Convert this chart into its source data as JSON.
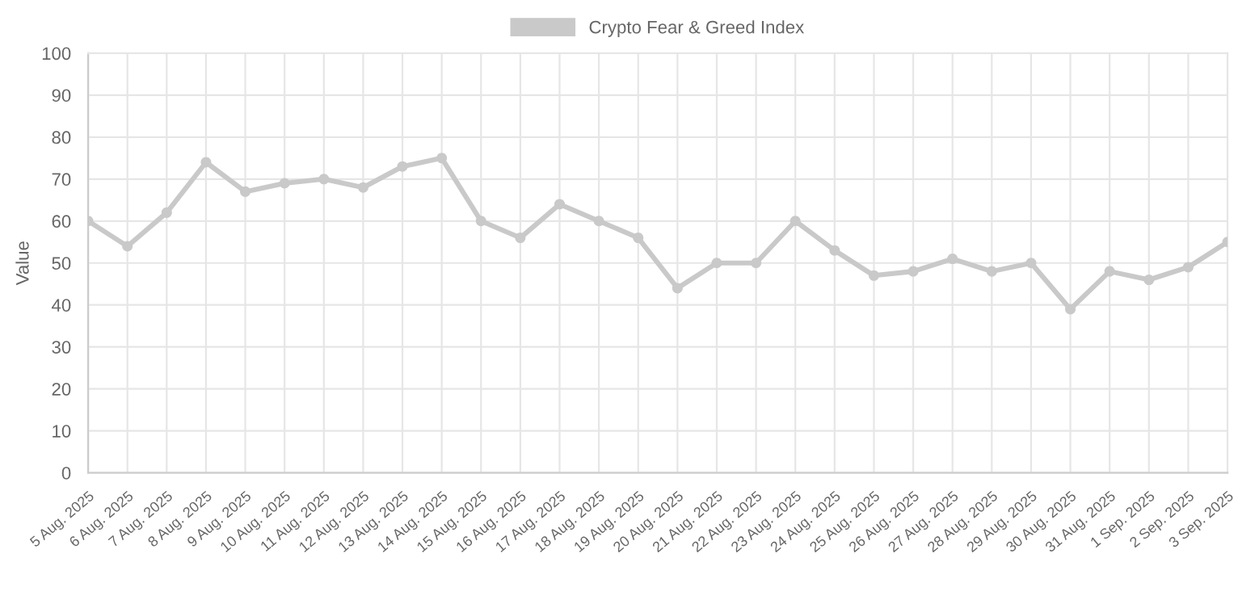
{
  "chart_data": {
    "type": "line",
    "ylabel": "Value",
    "categories": [
      "5 Aug. 2025",
      "6 Aug. 2025",
      "7 Aug. 2025",
      "8 Aug. 2025",
      "9 Aug. 2025",
      "10 Aug. 2025",
      "11 Aug. 2025",
      "12 Aug. 2025",
      "13 Aug. 2025",
      "14 Aug. 2025",
      "15 Aug. 2025",
      "16 Aug. 2025",
      "17 Aug. 2025",
      "18 Aug. 2025",
      "19 Aug. 2025",
      "20 Aug. 2025",
      "21 Aug. 2025",
      "22 Aug. 2025",
      "23 Aug. 2025",
      "24 Aug. 2025",
      "25 Aug. 2025",
      "26 Aug. 2025",
      "27 Aug. 2025",
      "28 Aug. 2025",
      "29 Aug. 2025",
      "30 Aug. 2025",
      "31 Aug. 2025",
      "1 Sep. 2025",
      "2 Sep. 2025",
      "3 Sep. 2025"
    ],
    "series": [
      {
        "name": "Crypto Fear & Greed Index",
        "color": "#c9c9c9",
        "values": [
          60,
          54,
          62,
          74,
          67,
          69,
          70,
          68,
          73,
          75,
          60,
          56,
          64,
          60,
          56,
          44,
          50,
          50,
          60,
          53,
          47,
          48,
          51,
          48,
          50,
          39,
          48,
          46,
          49,
          55
        ]
      }
    ],
    "ylim": [
      0,
      100
    ],
    "yticks": [
      0,
      10,
      20,
      30,
      40,
      50,
      60,
      70,
      80,
      90,
      100
    ],
    "grid": true,
    "legend": "top",
    "marker": "circle",
    "line_style": "solid"
  }
}
